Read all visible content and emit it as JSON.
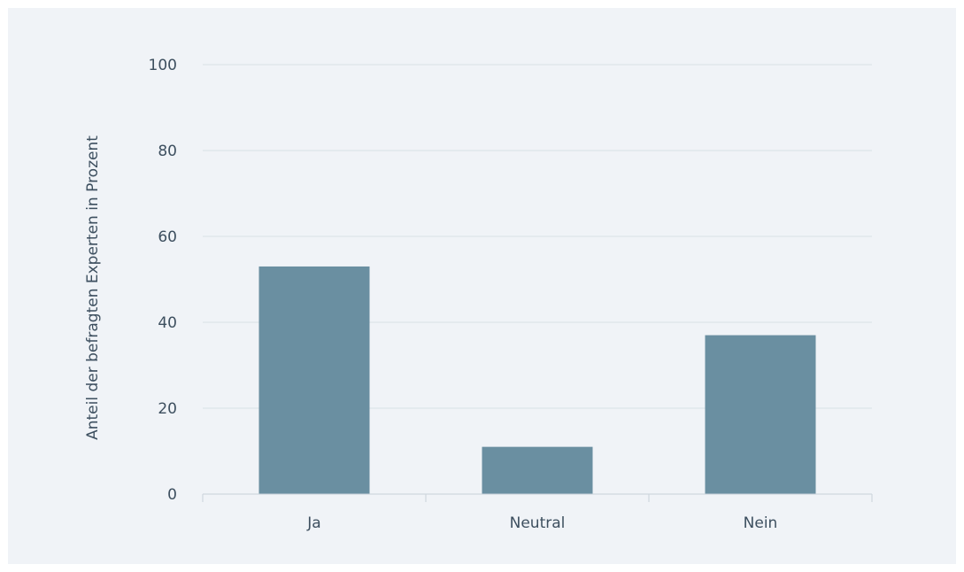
{
  "chart_data": {
    "type": "bar",
    "categories": [
      "Ja",
      "Neutral",
      "Nein"
    ],
    "values": [
      53,
      11,
      37
    ],
    "ylabel": "Anteil der befragten Experten in Prozent",
    "xlabel": "",
    "ylim": [
      0,
      100
    ],
    "yticks": [
      0,
      20,
      40,
      60,
      80,
      100
    ],
    "grid": true,
    "legend": "none",
    "colors": {
      "bar": "#6a8fa1",
      "grid": "#d9e0e6",
      "axis": "#c9d2da",
      "text": "#3d4f5f",
      "background": "#f0f3f7"
    }
  }
}
